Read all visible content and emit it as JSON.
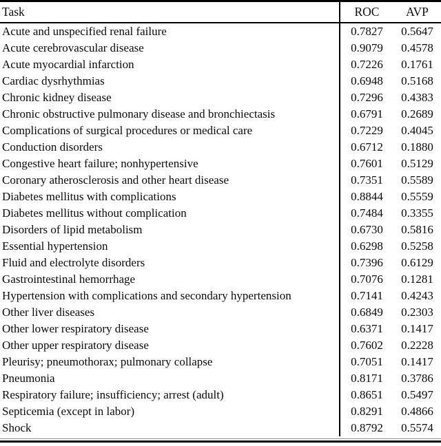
{
  "table": {
    "columns": {
      "task": "Task",
      "roc": "ROC",
      "avp": "AVP"
    },
    "rows": [
      {
        "task": "Acute and unspecified renal failure",
        "roc": "0.7827",
        "avp": "0.5647"
      },
      {
        "task": "Acute cerebrovascular disease",
        "roc": "0.9079",
        "avp": "0.4578"
      },
      {
        "task": "Acute myocardial infarction",
        "roc": "0.7226",
        "avp": "0.1761"
      },
      {
        "task": "Cardiac dysrhythmias",
        "roc": "0.6948",
        "avp": "0.5168"
      },
      {
        "task": "Chronic kidney disease",
        "roc": "0.7296",
        "avp": "0.4383"
      },
      {
        "task": "Chronic obstructive pulmonary disease and bronchiectasis",
        "roc": "0.6791",
        "avp": "0.2689"
      },
      {
        "task": "Complications of surgical procedures or medical care",
        "roc": "0.7229",
        "avp": "0.4045"
      },
      {
        "task": "Conduction disorders",
        "roc": "0.6712",
        "avp": "0.1880"
      },
      {
        "task": "Congestive heart failure; nonhypertensive",
        "roc": "0.7601",
        "avp": "0.5129"
      },
      {
        "task": "Coronary atherosclerosis and other heart disease",
        "roc": "0.7351",
        "avp": "0.5589"
      },
      {
        "task": "Diabetes mellitus with complications",
        "roc": "0.8844",
        "avp": "0.5559"
      },
      {
        "task": "Diabetes mellitus without complication",
        "roc": "0.7484",
        "avp": "0.3355"
      },
      {
        "task": "Disorders of lipid metabolism",
        "roc": "0.6730",
        "avp": "0.5816"
      },
      {
        "task": "Essential hypertension",
        "roc": "0.6298",
        "avp": "0.5258"
      },
      {
        "task": "Fluid and electrolyte disorders",
        "roc": "0.7396",
        "avp": "0.6129"
      },
      {
        "task": "Gastrointestinal hemorrhage",
        "roc": "0.7076",
        "avp": "0.1281"
      },
      {
        "task": "Hypertension with complications and secondary hypertension",
        "roc": "0.7141",
        "avp": "0.4243"
      },
      {
        "task": "Other liver diseases",
        "roc": "0.6849",
        "avp": "0.2303"
      },
      {
        "task": "Other lower respiratory disease",
        "roc": "0.6371",
        "avp": "0.1417"
      },
      {
        "task": "Other upper respiratory disease",
        "roc": "0.7602",
        "avp": "0.2228"
      },
      {
        "task": "Pleurisy; pneumothorax; pulmonary collapse",
        "roc": "0.7051",
        "avp": "0.1417"
      },
      {
        "task": "Pneumonia",
        "roc": "0.8171",
        "avp": "0.3786"
      },
      {
        "task": "Respiratory failure; insufficiency; arrest (adult)",
        "roc": "0.8651",
        "avp": "0.5497"
      },
      {
        "task": "Septicemia (except in labor)",
        "roc": "0.8291",
        "avp": "0.4866"
      },
      {
        "task": "Shock",
        "roc": "0.8792",
        "avp": "0.5574"
      }
    ]
  }
}
